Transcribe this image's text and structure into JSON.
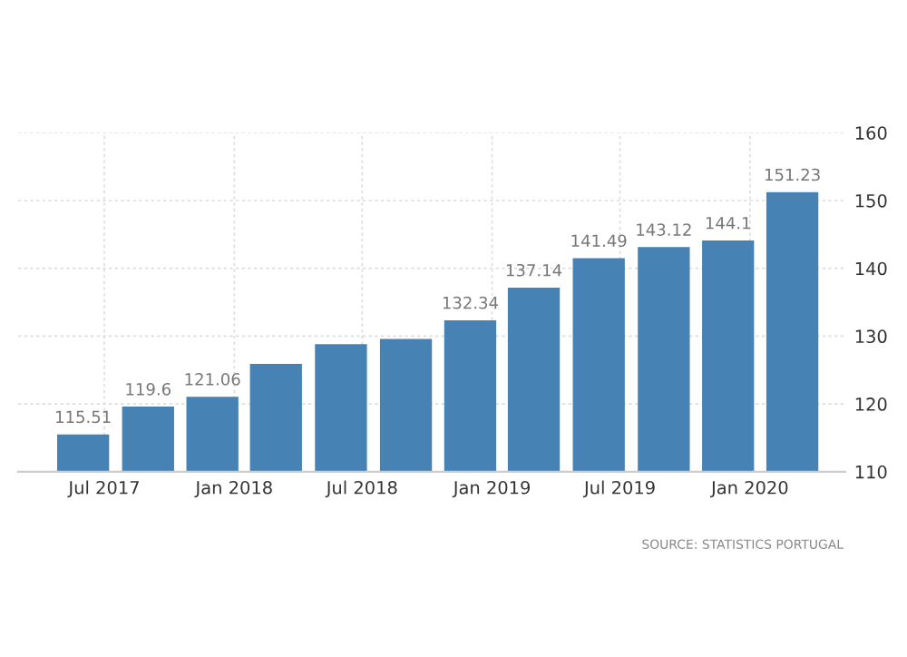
{
  "chart_data": {
    "type": "bar",
    "x": [
      "2017-06",
      "2017-09",
      "2017-12",
      "2018-03",
      "2018-06",
      "2018-09",
      "2018-12",
      "2019-03",
      "2019-06",
      "2019-09",
      "2019-12",
      "2020-03"
    ],
    "values": [
      115.51,
      119.6,
      121.06,
      125.9,
      128.8,
      129.6,
      132.34,
      137.14,
      141.49,
      143.12,
      144.1,
      151.23
    ],
    "value_labels": [
      "115.51",
      "119.6",
      "121.06",
      null,
      null,
      null,
      "132.34",
      "137.14",
      "141.49",
      "143.12",
      "144.1",
      "151.23"
    ],
    "color": "#4682b4",
    "xlim": [
      "2017-03-01",
      "2020-05-15"
    ],
    "xticks": [
      {
        "value": "2017-07",
        "label": "Jul 2017"
      },
      {
        "value": "2018-01",
        "label": "Jan 2018"
      },
      {
        "value": "2018-07",
        "label": "Jul 2018"
      },
      {
        "value": "2019-01",
        "label": "Jan 2019"
      },
      {
        "value": "2019-07",
        "label": "Jul 2019"
      },
      {
        "value": "2020-01",
        "label": "Jan 2020"
      }
    ],
    "ylim": [
      110,
      160
    ],
    "yticks": [
      110,
      120,
      130,
      140,
      150,
      160
    ],
    "grid": true,
    "annotations": [
      "SOURCE: STATISTICS PORTUGAL"
    ]
  }
}
